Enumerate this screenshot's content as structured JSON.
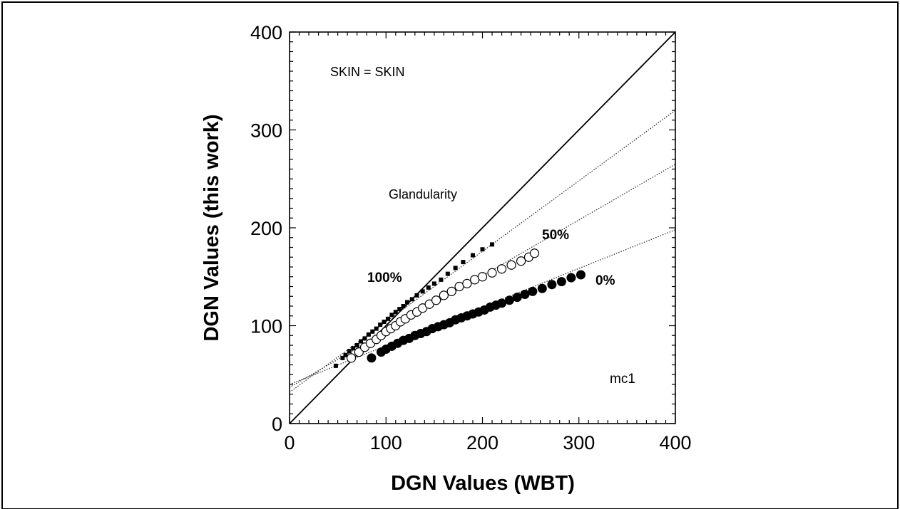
{
  "chart_data": {
    "type": "scatter",
    "title": "",
    "xlabel": "DGN Values (WBT)",
    "ylabel": "DGN Values (this work)",
    "xlim": [
      0,
      400
    ],
    "ylim": [
      0,
      400
    ],
    "xticks": [
      "0",
      "100",
      "200",
      "300",
      "400"
    ],
    "yticks": [
      "0",
      "100",
      "200",
      "300",
      "400"
    ],
    "grid": false,
    "annotations": {
      "skin": "SKIN = SKIN",
      "glandularity": "Glandularity",
      "g100": "100%",
      "g50": "50%",
      "g0": "0%",
      "model": "mc1"
    },
    "identity_line": {
      "x": [
        0,
        400
      ],
      "y": [
        0,
        400
      ]
    },
    "fit_lines": [
      {
        "series": "100%",
        "x": [
          0,
          400
        ],
        "y": [
          32,
          320
        ]
      },
      {
        "series": "50%",
        "x": [
          0,
          400
        ],
        "y": [
          37,
          265
        ]
      },
      {
        "series": "0%",
        "x": [
          0,
          400
        ],
        "y": [
          40,
          198
        ]
      }
    ],
    "series": [
      {
        "name": "100%",
        "marker": "filled-square",
        "x": [
          48,
          55,
          58,
          62,
          66,
          70,
          74,
          78,
          82,
          86,
          90,
          94,
          98,
          102,
          106,
          110,
          114,
          118,
          122,
          127,
          132,
          138,
          144,
          150,
          157,
          164,
          172,
          180,
          190,
          200,
          210
        ],
        "y": [
          59,
          67,
          70,
          74,
          77,
          80,
          84,
          87,
          91,
          94,
          97,
          101,
          104,
          107,
          111,
          114,
          117,
          120,
          124,
          127,
          131,
          135,
          139,
          143,
          147,
          153,
          159,
          165,
          172,
          178,
          183
        ]
      },
      {
        "name": "50%",
        "marker": "open-circle",
        "x": [
          64,
          72,
          78,
          84,
          90,
          95,
          100,
          105,
          110,
          115,
          120,
          126,
          132,
          138,
          145,
          152,
          160,
          168,
          176,
          184,
          192,
          200,
          210,
          220,
          230,
          240,
          248,
          254
        ],
        "y": [
          67,
          73,
          78,
          82,
          86,
          90,
          94,
          97,
          100,
          104,
          107,
          111,
          114,
          118,
          122,
          126,
          131,
          135,
          140,
          143,
          147,
          150,
          154,
          158,
          162,
          166,
          170,
          174
        ]
      },
      {
        "name": "0%",
        "marker": "filled-circle",
        "x": [
          85,
          95,
          100,
          106,
          112,
          118,
          124,
          130,
          136,
          142,
          148,
          154,
          160,
          166,
          172,
          178,
          184,
          190,
          196,
          202,
          208,
          214,
          220,
          228,
          236,
          244,
          252,
          262,
          272,
          282,
          292,
          302
        ],
        "y": [
          67,
          73,
          76,
          79,
          82,
          85,
          87,
          90,
          92,
          94,
          97,
          99,
          101,
          103,
          106,
          108,
          110,
          112,
          114,
          116,
          119,
          121,
          123,
          126,
          129,
          132,
          135,
          138,
          142,
          145,
          149,
          152
        ]
      }
    ]
  }
}
